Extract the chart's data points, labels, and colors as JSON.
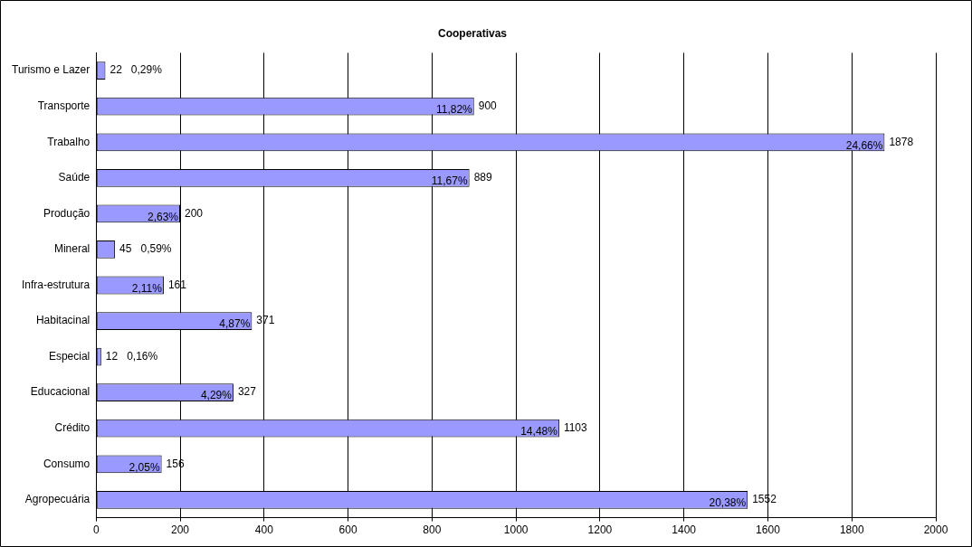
{
  "chart_data": {
    "type": "bar",
    "orientation": "horizontal",
    "title": "Cooperativas",
    "categories": [
      "Turismo e Lazer",
      "Transporte",
      "Trabalho",
      "Saúde",
      "Produção",
      "Mineral",
      "Infra-estrutura",
      "Habitacinal",
      "Especial",
      "Educacional",
      "Crédito",
      "Consumo",
      "Agropecuária"
    ],
    "values": [
      22,
      900,
      1878,
      889,
      200,
      45,
      161,
      371,
      12,
      327,
      1103,
      156,
      1552
    ],
    "color": "#9999ff",
    "xlim": [
      0,
      2000
    ],
    "xticks": [
      0,
      200,
      400,
      600,
      800,
      1000,
      1200,
      1400,
      1600,
      1800,
      2000
    ],
    "grid": "x",
    "legend": false,
    "data_labels": true,
    "annotations": [
      {
        "text": "0,29%",
        "x": 22,
        "y": "Turismo e Lazer"
      },
      {
        "text": "11,82%",
        "x": 900,
        "y": "Transporte"
      },
      {
        "text": "24,66%",
        "x": 1878,
        "y": "Trabalho"
      },
      {
        "text": "11,67%",
        "x": 889,
        "y": "Saúde"
      },
      {
        "text": "2,63%",
        "x": 200,
        "y": "Produção"
      },
      {
        "text": "0,59%",
        "x": 45,
        "y": "Mineral"
      },
      {
        "text": "2,11%",
        "x": 161,
        "y": "Infra-estrutura"
      },
      {
        "text": "4,87%",
        "x": 371,
        "y": "Habitacinal"
      },
      {
        "text": "0,16%",
        "x": 12,
        "y": "Especial"
      },
      {
        "text": "4,29%",
        "x": 327,
        "y": "Educacional"
      },
      {
        "text": "14,48%",
        "x": 1103,
        "y": "Crédito"
      },
      {
        "text": "2,05%",
        "x": 156,
        "y": "Consumo"
      },
      {
        "text": "20,38%",
        "x": 1552,
        "y": "Agropecuária"
      }
    ]
  }
}
